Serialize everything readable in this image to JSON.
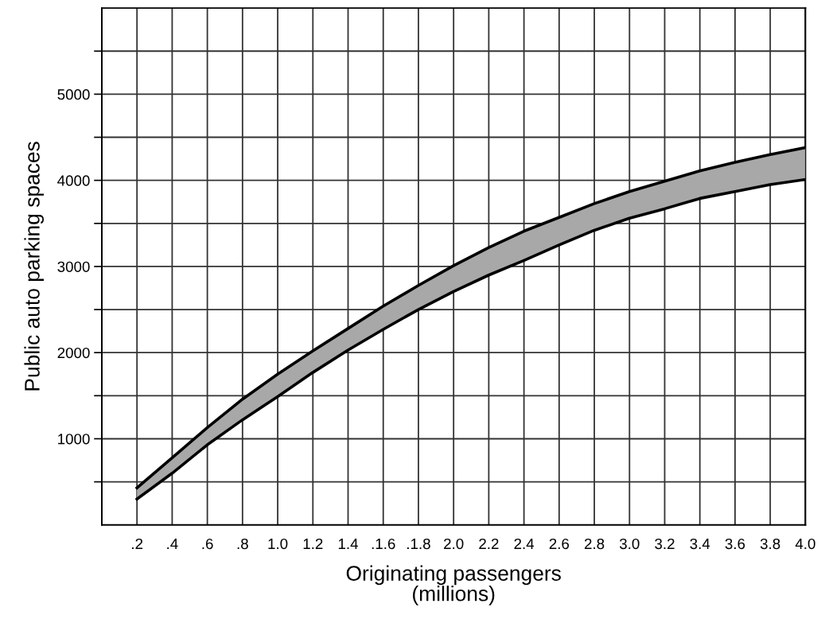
{
  "chart_data": {
    "type": "line",
    "xlabel": "Originating passengers\n(millions)",
    "ylabel": "Public auto parking spaces",
    "x": [
      0.2,
      0.4,
      0.6,
      0.8,
      1.0,
      1.2,
      1.4,
      1.6,
      1.8,
      2.0,
      2.2,
      2.4,
      2.6,
      2.8,
      3.0,
      3.2,
      3.4,
      3.6,
      3.8,
      4.0
    ],
    "series": [
      {
        "color": "#000000",
        "values": [
          430,
          780,
          1130,
          1460,
          1750,
          2020,
          2280,
          2540,
          2780,
          3010,
          3220,
          3410,
          3570,
          3730,
          3870,
          3990,
          4110,
          4210,
          4300,
          4380
        ],
        "lower": [
          300,
          600,
          930,
          1220,
          1490,
          1770,
          2030,
          2270,
          2500,
          2710,
          2900,
          3070,
          3250,
          3420,
          3560,
          3670,
          3790,
          3870,
          3950,
          4010
        ],
        "upper": [
          430,
          780,
          1130,
          1460,
          1750,
          2020,
          2280,
          2540,
          2780,
          3010,
          3220,
          3410,
          3570,
          3730,
          3870,
          3990,
          4110,
          4210,
          4300,
          4380
        ]
      },
      {
        "color": "#000000",
        "values": [
          300,
          600,
          930,
          1220,
          1490,
          1770,
          2030,
          2270,
          2500,
          2710,
          2900,
          3070,
          3250,
          3420,
          3560,
          3670,
          3790,
          3870,
          3950,
          4010
        ]
      }
    ],
    "xlim": [
      0,
      4.0
    ],
    "xticks": [
      {
        "value": 0,
        "label": null
      },
      {
        "value": 0.2,
        "label": ".2"
      },
      {
        "value": 0.4,
        "label": ".4"
      },
      {
        "value": 0.6,
        "label": ".6"
      },
      {
        "value": 0.8,
        "label": ".8"
      },
      {
        "value": 1.0,
        "label": "1.0"
      },
      {
        "value": 1.2,
        "label": "1.2"
      },
      {
        "value": 1.4,
        "label": "1.4"
      },
      {
        "value": 1.6,
        "label": ".1.6"
      },
      {
        "value": 1.8,
        "label": ".1.8"
      },
      {
        "value": 2.0,
        "label": "2.0"
      },
      {
        "value": 2.2,
        "label": "2.2"
      },
      {
        "value": 2.4,
        "label": "2.4"
      },
      {
        "value": 2.6,
        "label": "2.6"
      },
      {
        "value": 2.8,
        "label": "2.8"
      },
      {
        "value": 3.0,
        "label": "3.0"
      },
      {
        "value": 3.2,
        "label": "3.2"
      },
      {
        "value": 3.4,
        "label": "3.4"
      },
      {
        "value": 3.6,
        "label": "3.6"
      },
      {
        "value": 3.8,
        "label": "3.8"
      },
      {
        "value": 4.0,
        "label": "4.0"
      }
    ],
    "ylim": [
      0,
      6000
    ],
    "yticks": [
      {
        "value": 500,
        "label": null
      },
      1000,
      {
        "value": 1500,
        "label": null
      },
      2000,
      {
        "value": 2500,
        "label": null
      },
      3000,
      {
        "value": 3500,
        "label": null
      },
      4000,
      {
        "value": 4500,
        "label": null
      },
      5000,
      {
        "value": 5500,
        "label": null
      }
    ],
    "grid": true,
    "marker": "none",
    "line_style": "solid"
  }
}
